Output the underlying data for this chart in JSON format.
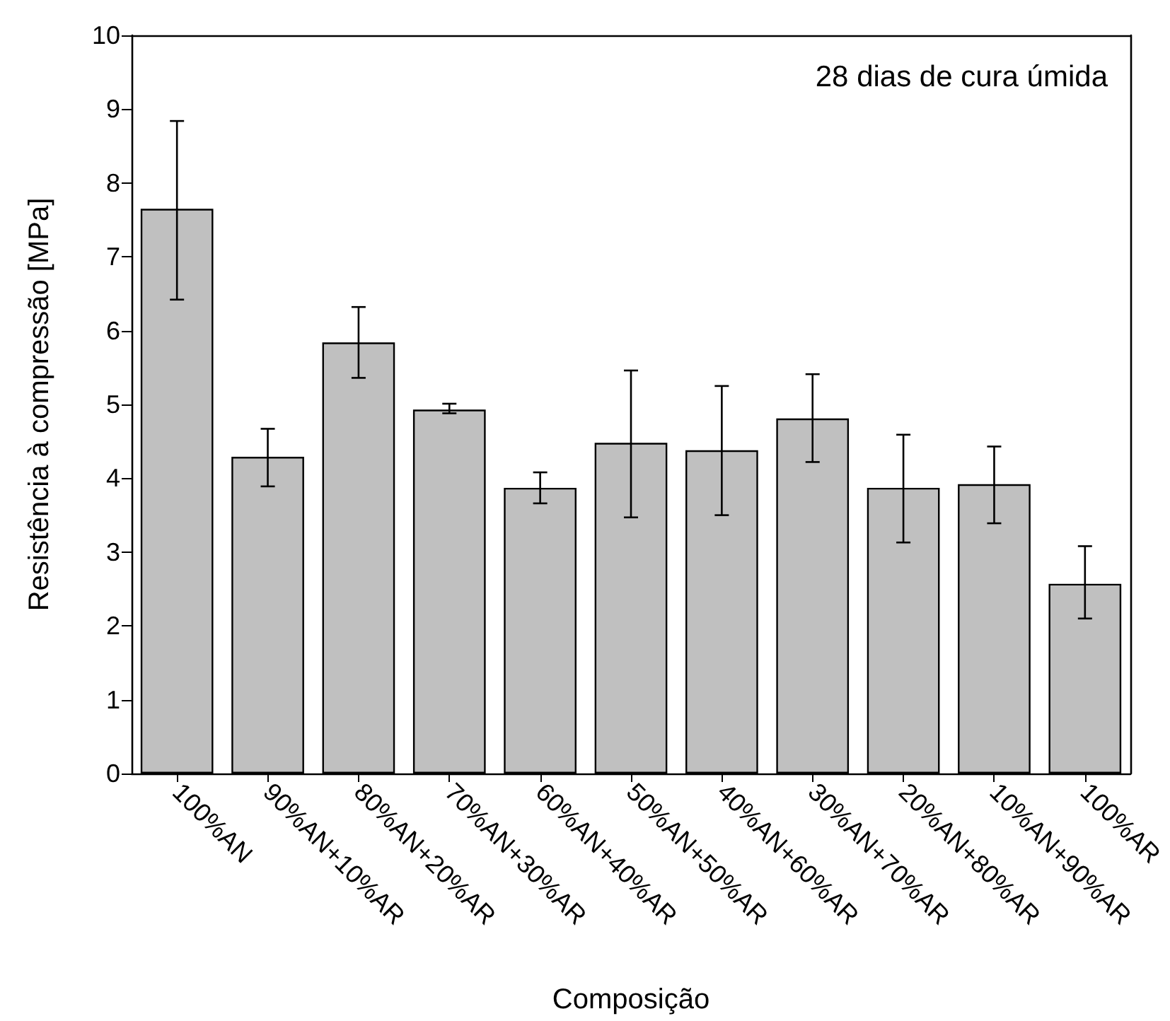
{
  "chart_data": {
    "type": "bar",
    "xlabel": "Composição",
    "ylabel": "Resistência à compressão [MPa]",
    "annotations": [
      "28 dias de cura úmida"
    ],
    "categories": [
      "100%AN",
      "90%AN+10%AR",
      "80%AN+20%AR",
      "70%AN+30%AR",
      "60%AN+40%AR",
      "50%AN+50%AR",
      "40%AN+60%AR",
      "30%AN+70%AR",
      "20%AN+80%AR",
      "10%AN+90%AR",
      "100%AR"
    ],
    "values": [
      7.65,
      4.29,
      5.84,
      4.93,
      3.87,
      4.48,
      4.38,
      4.81,
      3.87,
      3.92,
      2.57
    ],
    "errors": [
      [
        6.42,
        8.84
      ],
      [
        3.89,
        4.67
      ],
      [
        5.36,
        6.32
      ],
      [
        4.88,
        5.01
      ],
      [
        3.66,
        4.08
      ],
      [
        3.47,
        5.46
      ],
      [
        3.5,
        5.25
      ],
      [
        4.22,
        5.41
      ],
      [
        3.13,
        4.59
      ],
      [
        3.39,
        4.43
      ],
      [
        2.1,
        3.08
      ]
    ],
    "color": "#c0c0c0",
    "ylim": [
      0,
      10
    ],
    "yticks": [
      0,
      1,
      2,
      3,
      4,
      5,
      6,
      7,
      8,
      9,
      10
    ],
    "grid": false
  }
}
